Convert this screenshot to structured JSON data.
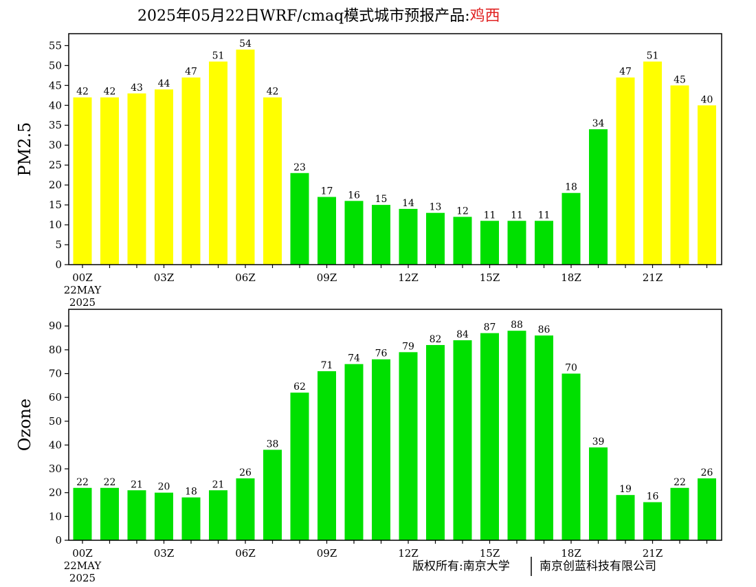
{
  "title": {
    "main": "2025年05月22日WRF/cmaq模式城市预报产品:",
    "city": "鸡西"
  },
  "copyright": {
    "left": "版权所有:南京大学",
    "right": "南京创蓝科技有限公司"
  },
  "colors": {
    "good": "#00e000",
    "moderate": "#ffff00",
    "axis": "#000000",
    "city_title": "#e02020"
  },
  "chart_data": [
    {
      "type": "bar",
      "ylabel": "PM2.5",
      "ylim": [
        0,
        58
      ],
      "yticks": [
        0,
        5,
        10,
        15,
        20,
        25,
        30,
        35,
        40,
        45,
        50,
        55
      ],
      "x_tick_labels": [
        {
          "index": 0,
          "label": "00Z"
        },
        {
          "index": 3,
          "label": "03Z"
        },
        {
          "index": 6,
          "label": "06Z"
        },
        {
          "index": 9,
          "label": "09Z"
        },
        {
          "index": 12,
          "label": "12Z"
        },
        {
          "index": 15,
          "label": "15Z"
        },
        {
          "index": 18,
          "label": "18Z"
        },
        {
          "index": 21,
          "label": "21Z"
        }
      ],
      "date_label": [
        "22MAY",
        "2025"
      ],
      "values": [
        42,
        42,
        43,
        44,
        47,
        51,
        54,
        42,
        23,
        17,
        16,
        15,
        14,
        13,
        12,
        11,
        11,
        11,
        18,
        34,
        47,
        51,
        45,
        40
      ],
      "bar_colors": [
        "moderate",
        "moderate",
        "moderate",
        "moderate",
        "moderate",
        "moderate",
        "moderate",
        "moderate",
        "good",
        "good",
        "good",
        "good",
        "good",
        "good",
        "good",
        "good",
        "good",
        "good",
        "good",
        "good",
        "moderate",
        "moderate",
        "moderate",
        "moderate"
      ]
    },
    {
      "type": "bar",
      "ylabel": "Ozone",
      "ylim": [
        0,
        97
      ],
      "yticks": [
        0,
        10,
        20,
        30,
        40,
        50,
        60,
        70,
        80,
        90
      ],
      "x_tick_labels": [
        {
          "index": 0,
          "label": "00Z"
        },
        {
          "index": 3,
          "label": "03Z"
        },
        {
          "index": 6,
          "label": "06Z"
        },
        {
          "index": 9,
          "label": "09Z"
        },
        {
          "index": 12,
          "label": "12Z"
        },
        {
          "index": 15,
          "label": "15Z"
        },
        {
          "index": 18,
          "label": "18Z"
        },
        {
          "index": 21,
          "label": "21Z"
        }
      ],
      "date_label": [
        "22MAY",
        "2025"
      ],
      "values": [
        22,
        22,
        21,
        20,
        18,
        21,
        26,
        38,
        62,
        71,
        74,
        76,
        79,
        82,
        84,
        87,
        88,
        86,
        70,
        39,
        19,
        16,
        22,
        26
      ],
      "bar_colors": [
        "good",
        "good",
        "good",
        "good",
        "good",
        "good",
        "good",
        "good",
        "good",
        "good",
        "good",
        "good",
        "good",
        "good",
        "good",
        "good",
        "good",
        "good",
        "good",
        "good",
        "good",
        "good",
        "good",
        "good"
      ]
    }
  ]
}
